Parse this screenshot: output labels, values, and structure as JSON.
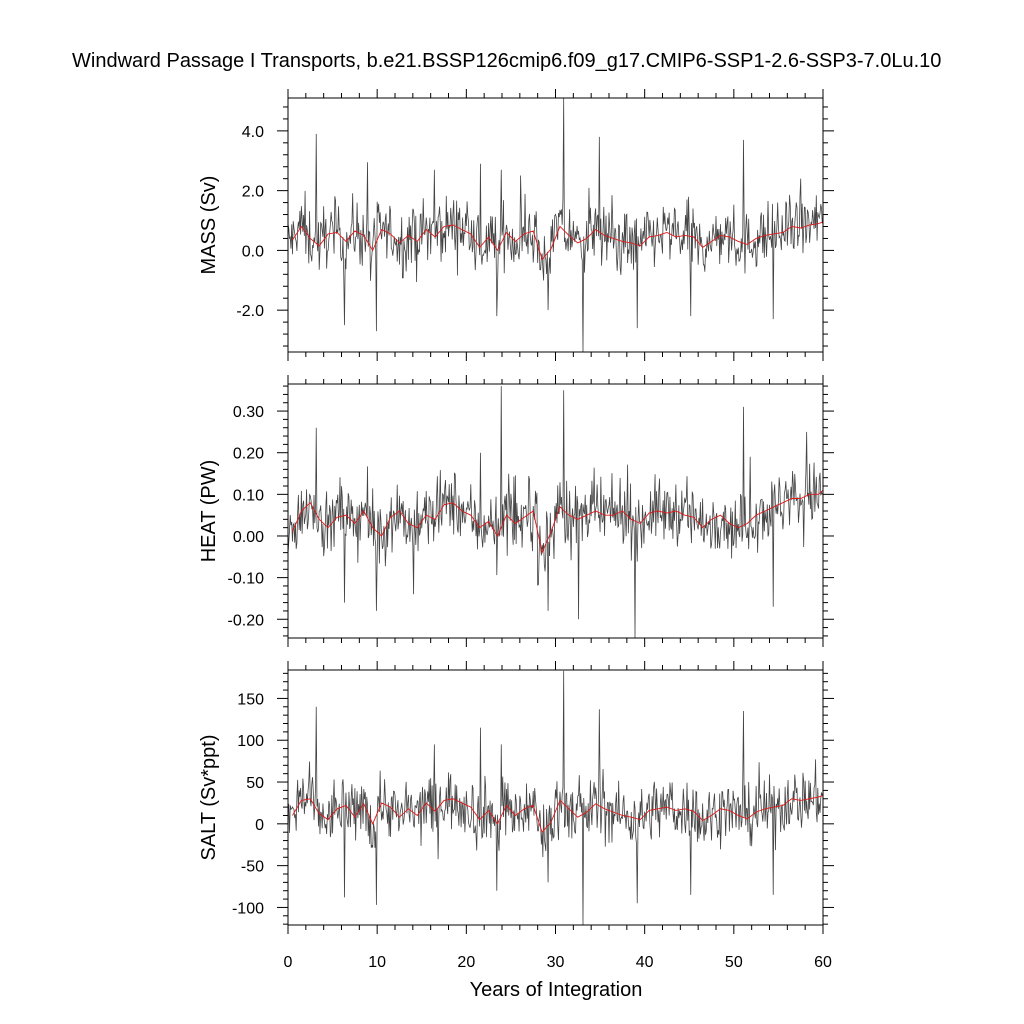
{
  "title": "Windward Passage I Transports, b.e21.BSSP126cmip6.f09_g17.CMIP6-SSP1-2.6-SSP3-7.0Lu.10",
  "xlabel": "Years of Integration",
  "colors": {
    "monthly": "#444444",
    "annual": "#e01818",
    "axis": "#000000"
  },
  "chart_data": [
    {
      "type": "line",
      "panel": "mass",
      "ylabel": "MASS (Sv)",
      "xlim": [
        0,
        60
      ],
      "ylim": [
        -3.4,
        5.1
      ],
      "xticks": [
        "0",
        "10",
        "20",
        "30",
        "40",
        "50",
        "60"
      ],
      "yticks": [
        "-2.0",
        "0.0",
        "2.0",
        "4.0"
      ],
      "series": [
        {
          "role": "monthly",
          "mean": 0.45,
          "amp": 0.75,
          "values": []
        },
        {
          "role": "annual",
          "values": [
            0.35,
            0.8,
            0.4,
            0.15,
            0.55,
            0.6,
            0.3,
            0.65,
            0.5,
            0.0,
            0.7,
            0.55,
            0.25,
            0.5,
            0.3,
            0.7,
            0.45,
            0.8,
            0.85,
            0.7,
            0.55,
            0.1,
            0.45,
            0.0,
            0.6,
            0.3,
            0.55,
            0.65,
            -0.3,
            0.05,
            0.8,
            0.5,
            0.25,
            0.4,
            0.7,
            0.5,
            0.4,
            0.3,
            0.25,
            0.15,
            0.45,
            0.5,
            0.6,
            0.45,
            0.5,
            0.45,
            0.1,
            0.3,
            0.5,
            0.45,
            0.3,
            0.2,
            0.4,
            0.5,
            0.55,
            0.6,
            0.8,
            0.75,
            0.85,
            0.9,
            0.95
          ]
        }
      ],
      "spikes": [
        [
          3.2,
          3.9
        ],
        [
          6.3,
          -2.5
        ],
        [
          8.9,
          2.95
        ],
        [
          9.9,
          -2.7
        ],
        [
          16.4,
          2.7
        ],
        [
          21.6,
          2.9
        ],
        [
          23.4,
          -2.2
        ],
        [
          23.9,
          2.7
        ],
        [
          29.2,
          -2.0
        ],
        [
          30.9,
          5.1
        ],
        [
          33.1,
          -3.4
        ],
        [
          34.9,
          3.8
        ],
        [
          39.2,
          -2.6
        ],
        [
          45.2,
          -2.2
        ],
        [
          51.1,
          3.7
        ],
        [
          54.4,
          -2.3
        ],
        [
          57.5,
          2.4
        ]
      ]
    },
    {
      "type": "line",
      "panel": "heat",
      "ylabel": "HEAT (PW)",
      "xlim": [
        0,
        60
      ],
      "ylim": [
        -0.245,
        0.365
      ],
      "xticks": [
        "0",
        "10",
        "20",
        "30",
        "40",
        "50",
        "60"
      ],
      "yticks": [
        "-0.20",
        "-0.10",
        "0.00",
        "0.10",
        "0.20",
        "0.30"
      ],
      "series": [
        {
          "role": "monthly",
          "mean": 0.04,
          "amp": 0.055,
          "values": []
        },
        {
          "role": "annual",
          "values": [
            0.01,
            0.06,
            0.08,
            0.04,
            0.02,
            0.045,
            0.05,
            0.03,
            0.06,
            0.02,
            0.0,
            0.045,
            0.06,
            0.03,
            0.02,
            0.05,
            0.04,
            0.075,
            0.08,
            0.06,
            0.05,
            0.02,
            0.035,
            0.0,
            0.05,
            0.03,
            0.045,
            0.06,
            -0.04,
            0.01,
            0.07,
            0.05,
            0.04,
            0.05,
            0.06,
            0.05,
            0.05,
            0.06,
            0.04,
            0.03,
            0.055,
            0.06,
            0.055,
            0.06,
            0.05,
            0.045,
            0.02,
            0.04,
            0.05,
            0.03,
            0.02,
            0.03,
            0.05,
            0.06,
            0.07,
            0.08,
            0.09,
            0.09,
            0.1,
            0.1,
            0.11
          ]
        }
      ],
      "spikes": [
        [
          3.2,
          0.26
        ],
        [
          6.3,
          -0.16
        ],
        [
          9.9,
          -0.18
        ],
        [
          14.1,
          -0.14
        ],
        [
          21.6,
          0.2
        ],
        [
          23.9,
          0.36
        ],
        [
          29.2,
          -0.18
        ],
        [
          30.9,
          0.35
        ],
        [
          32.6,
          -0.2
        ],
        [
          38.9,
          -0.245
        ],
        [
          51.1,
          0.31
        ],
        [
          54.4,
          -0.17
        ],
        [
          58.2,
          0.25
        ]
      ]
    },
    {
      "type": "line",
      "panel": "salt",
      "ylabel": "SALT (Sv*ppt)",
      "xlim": [
        0,
        60
      ],
      "ylim": [
        -121,
        184
      ],
      "xticks": [
        "0",
        "10",
        "20",
        "30",
        "40",
        "50",
        "60"
      ],
      "yticks": [
        "-100",
        "-50",
        "0",
        "50",
        "100",
        "150"
      ],
      "series": [
        {
          "role": "monthly",
          "mean": 15,
          "amp": 26,
          "values": []
        },
        {
          "role": "annual",
          "values": [
            10,
            28,
            30,
            12,
            5,
            18,
            22,
            8,
            24,
            0,
            25,
            20,
            8,
            18,
            10,
            25,
            15,
            28,
            30,
            25,
            20,
            5,
            16,
            0,
            22,
            10,
            18,
            22,
            -10,
            2,
            28,
            18,
            8,
            14,
            24,
            18,
            14,
            10,
            8,
            5,
            16,
            18,
            20,
            16,
            18,
            15,
            4,
            10,
            18,
            16,
            10,
            6,
            14,
            18,
            20,
            22,
            30,
            28,
            30,
            32,
            34
          ]
        }
      ],
      "spikes": [
        [
          3.2,
          140
        ],
        [
          6.3,
          -88
        ],
        [
          9.9,
          -97
        ],
        [
          16.4,
          95
        ],
        [
          21.6,
          115
        ],
        [
          23.4,
          -80
        ],
        [
          23.9,
          95
        ],
        [
          29.2,
          -70
        ],
        [
          30.9,
          183
        ],
        [
          33.1,
          -121
        ],
        [
          34.9,
          137
        ],
        [
          39.2,
          -95
        ],
        [
          45.2,
          -85
        ],
        [
          51.1,
          135
        ],
        [
          54.4,
          -85
        ]
      ]
    }
  ]
}
